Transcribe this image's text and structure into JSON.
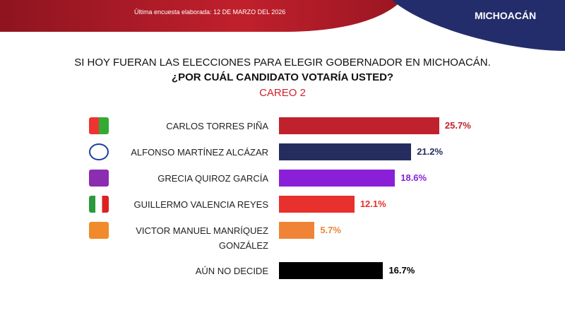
{
  "header": {
    "note": "Última encuesta elaborada: 12 DE MARZO DEL 2026",
    "region": "MICHOACÁN"
  },
  "chart_data": {
    "type": "bar",
    "orientation": "horizontal",
    "title": "SI HOY FUERAN LAS ELECCIONES PARA ELEGIR GOBERNADOR EN MICHOACÁN.",
    "subtitle": "¿POR CUÁL CANDIDATO VOTARÍA USTED?",
    "annotation": "CAREO 2",
    "categories": [
      "CARLOS TORRES PIÑA",
      "ALFONSO MARTÍNEZ ALCÁZAR",
      "GRECIA QUIROZ GARCÍA",
      "GUILLERMO VALENCIA REYES",
      "VICTOR MANUEL MANRÍQUEZ GONZÁLEZ",
      "AÚN NO DECIDE"
    ],
    "values": [
      25.7,
      21.2,
      18.6,
      12.1,
      5.7,
      16.7
    ],
    "value_labels": [
      "25.7%",
      "21.2%",
      "18.6%",
      "12.1%",
      "5.7%",
      "16.7%"
    ],
    "colors": [
      "#c0222d",
      "#252d5e",
      "#8a1fd8",
      "#e8302c",
      "#ef8437",
      "#000000"
    ]
  }
}
